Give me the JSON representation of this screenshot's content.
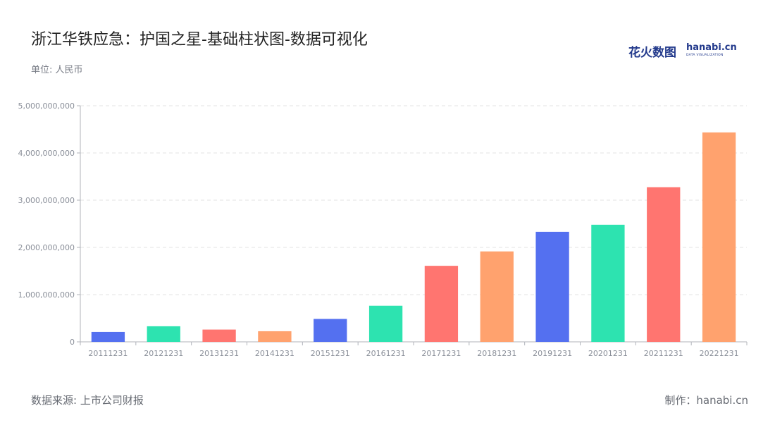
{
  "header": {
    "title": "浙江华铁应急：护国之星-基础柱状图-数据可视化",
    "unit": "单位: 人民币"
  },
  "footer": {
    "source": "数据来源: 上市公司财报",
    "maker": "制作：hanabi.cn"
  },
  "logo": {
    "text_cn": "花火数图",
    "text_en": "hanabi.cn",
    "subtitle": "DATA VISUALIZATION"
  },
  "colors": {
    "palette": [
      "#5470f0",
      "#2de3b0",
      "#ff7570",
      "#ffa26e"
    ],
    "grid": "#e3e3e3",
    "axis": "#b0b3ba"
  },
  "chart_data": {
    "type": "bar",
    "title": "浙江华铁应急：护国之星-基础柱状图-数据可视化",
    "xlabel": "",
    "ylabel": "",
    "categories": [
      "20111231",
      "20121231",
      "20131231",
      "20141231",
      "20151231",
      "20161231",
      "20171231",
      "20181231",
      "20191231",
      "20201231",
      "20211231",
      "20221231"
    ],
    "values": [
      210000000,
      330000000,
      260000000,
      225000000,
      485000000,
      765000000,
      1610000000,
      1915000000,
      2330000000,
      2480000000,
      3275000000,
      4435000000
    ],
    "ylim": [
      0,
      5000000000
    ],
    "yticks": [
      "0",
      "1,000,000,000",
      "2,000,000,000",
      "3,000,000,000",
      "4,000,000,000",
      "5,000,000,000"
    ],
    "grid": true
  }
}
